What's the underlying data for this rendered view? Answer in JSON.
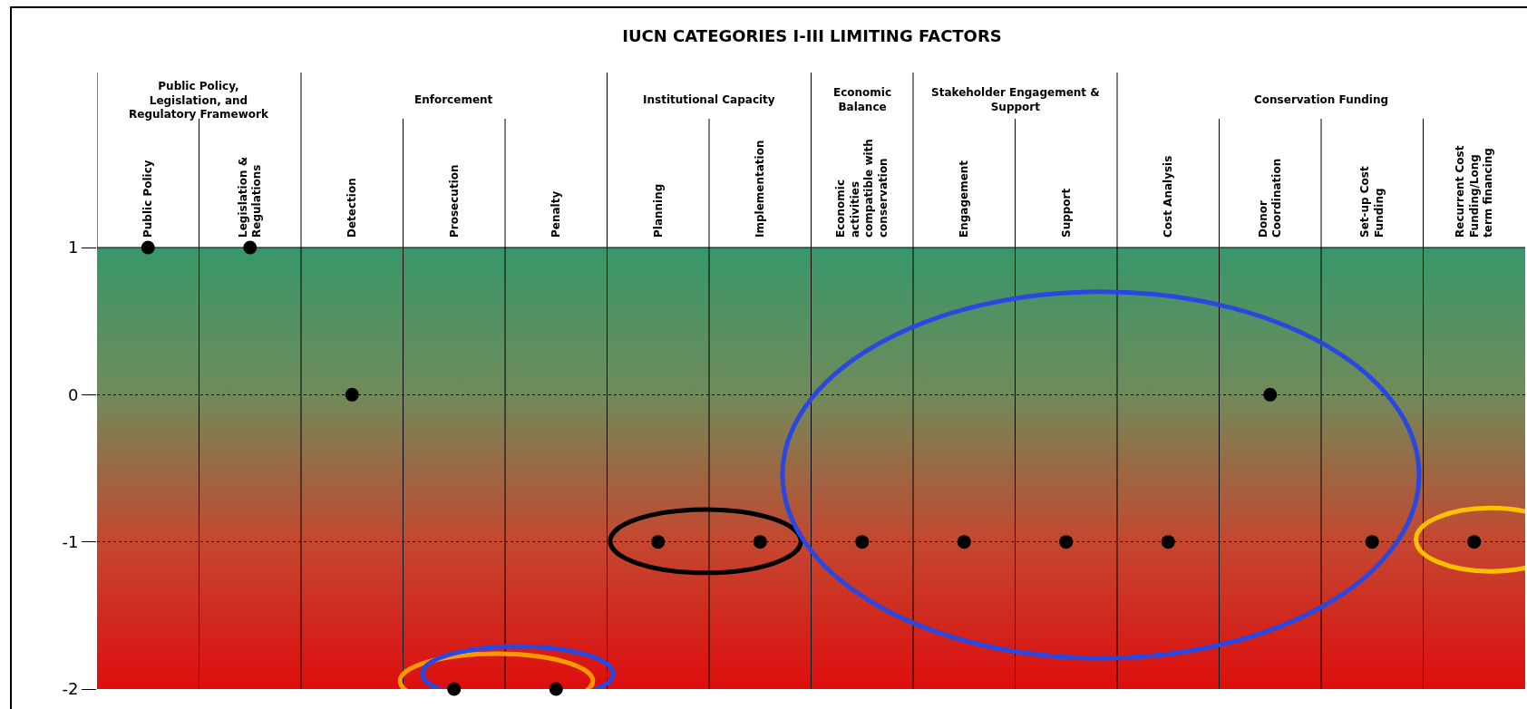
{
  "chart_data": {
    "type": "scatter",
    "title": "IUCN CATEGORIES I-III LIMITING FACTORS",
    "categories": [
      "Public Policy",
      "Legislation & Regulations",
      "Detection",
      "Prosecution",
      "Penalty",
      "Planning",
      "Implementation",
      "Economic activities compatible with conservation",
      "Engagement",
      "Support",
      "Cost Analysis",
      "Donor Coordination",
      "Set-up Cost Funding",
      "Recurrent Cost Funding/Long term financing"
    ],
    "series": [
      {
        "color": "#000000",
        "values": [
          1,
          1,
          0,
          -2,
          -2,
          -1,
          -1,
          -1,
          -1,
          -1,
          -1,
          0,
          -1,
          -1
        ]
      }
    ],
    "annotations": [
      "Public Policy, Legislation, and Regulatory Framework",
      "Enforcement",
      "Institutional Capacity",
      "Economic Balance",
      "Stakeholder Engagement & Support",
      "Conservation Funding"
    ],
    "ylim": [
      -2,
      1
    ],
    "yticks": [
      -2,
      -1,
      0,
      1
    ],
    "grid": "y",
    "marker": "circle"
  }
}
